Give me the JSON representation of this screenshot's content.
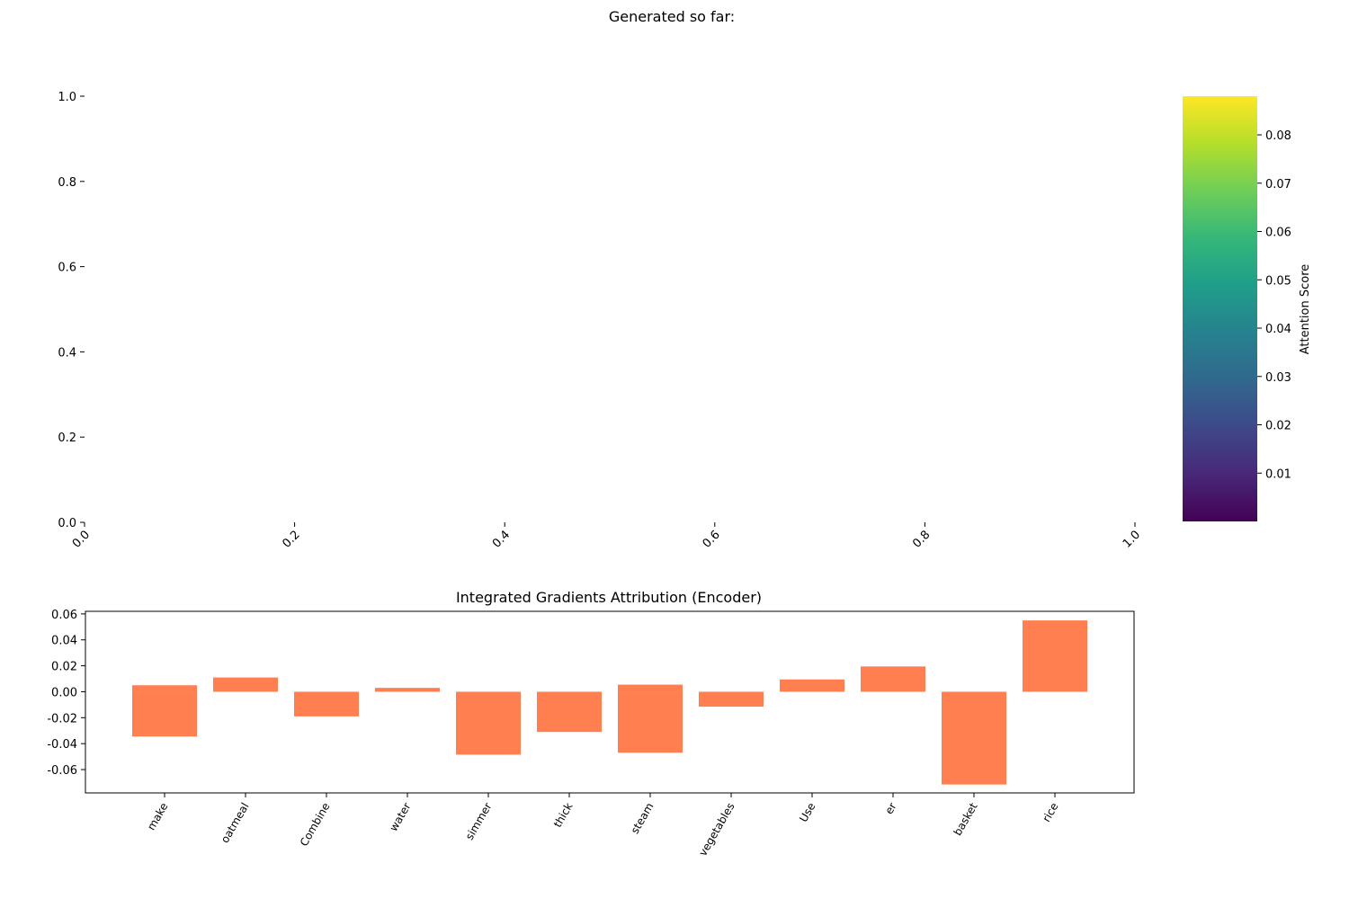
{
  "chart_data": [
    {
      "type": "heatmap",
      "title": "Generated so far:",
      "x_ticks": [
        "0.0",
        "0.2",
        "0.4",
        "0.6",
        "0.8",
        "1.0"
      ],
      "y_ticks": [
        "0.0",
        "0.2",
        "0.4",
        "0.6",
        "0.8",
        "1.0"
      ],
      "xlim": [
        0,
        1
      ],
      "ylim": [
        0,
        1
      ],
      "values": [],
      "colorbar": {
        "label": "Attention Score",
        "colormap": "viridis",
        "range": [
          0.0,
          0.088
        ],
        "ticks": [
          "0.01",
          "0.02",
          "0.03",
          "0.04",
          "0.05",
          "0.06",
          "0.07",
          "0.08"
        ],
        "colors": [
          "#440154",
          "#482878",
          "#3e4989",
          "#31688e",
          "#26828e",
          "#1f9e89",
          "#35b779",
          "#6ece58",
          "#b5de2b",
          "#fde725"
        ]
      }
    },
    {
      "type": "bar",
      "title": "Integrated Gradients Attribution (Encoder)",
      "categories": [
        "make",
        "oatmeal",
        "Combine",
        "water",
        "simmer",
        "thick",
        "steam",
        "vegetables",
        "Use",
        "er",
        "basket",
        "rice"
      ],
      "series": [
        {
          "values": [
            0.005,
            0.011,
            0.0,
            0.003,
            0.0,
            0.0,
            0.0055,
            0.0,
            0.0095,
            0.0195,
            0.0,
            0.055
          ]
        },
        {
          "values": [
            -0.0345,
            0.0,
            -0.019,
            0.0,
            -0.0485,
            -0.031,
            -0.047,
            -0.0115,
            0.0,
            0.0,
            -0.0715,
            0.0
          ]
        }
      ],
      "y_ticks": [
        "-0.06",
        "-0.04",
        "-0.02",
        "0.00",
        "0.02",
        "0.04",
        "0.06"
      ],
      "ylim": [
        -0.078,
        0.062
      ],
      "color": "#ff7f50"
    }
  ]
}
